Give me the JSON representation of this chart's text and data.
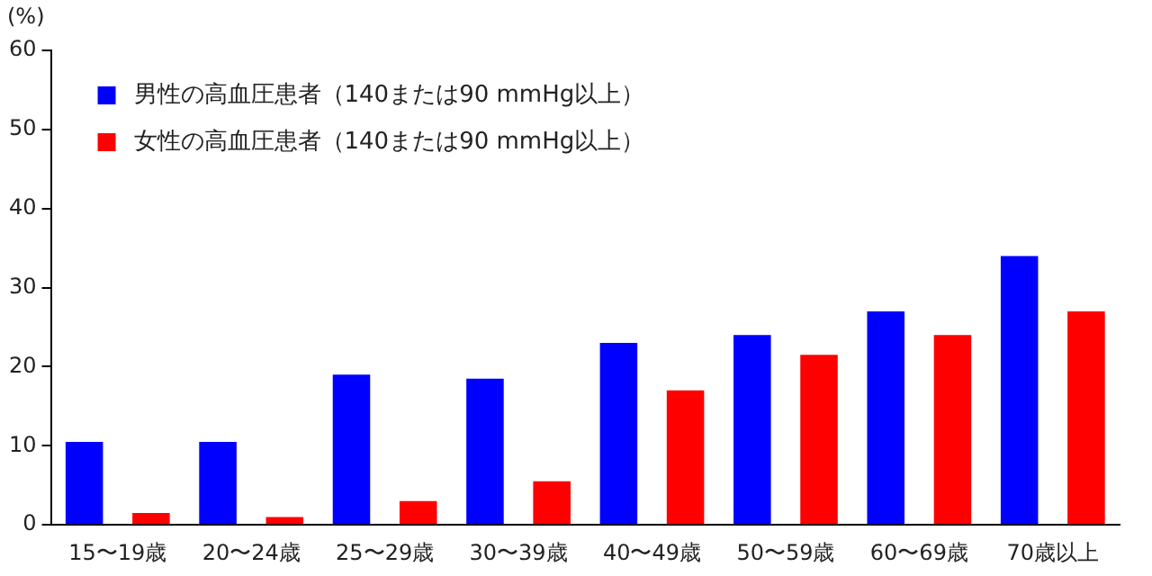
{
  "chart_data": {
    "type": "bar",
    "ylabel": "(%)",
    "categories": [
      "15〜19歳",
      "20〜24歳",
      "25〜29歳",
      "30〜39歳",
      "40〜49歳",
      "50〜59歳",
      "60〜69歳",
      "70歳以上"
    ],
    "series": [
      {
        "name": "男性の高血圧患者（140または90 mmHg以上）",
        "color": "#0000ff",
        "values": [
          10.5,
          10.5,
          19,
          18.5,
          23,
          24,
          27,
          34
        ]
      },
      {
        "name": "女性の高血圧患者（140または90 mmHg以上）",
        "color": "#ff0000",
        "values": [
          1.5,
          1,
          3,
          5.5,
          17,
          21.5,
          24,
          27
        ]
      }
    ],
    "ylim": [
      0,
      60
    ],
    "yticks": [
      0,
      10,
      20,
      30,
      40,
      50,
      60
    ],
    "grid": false,
    "legend": "top left"
  }
}
